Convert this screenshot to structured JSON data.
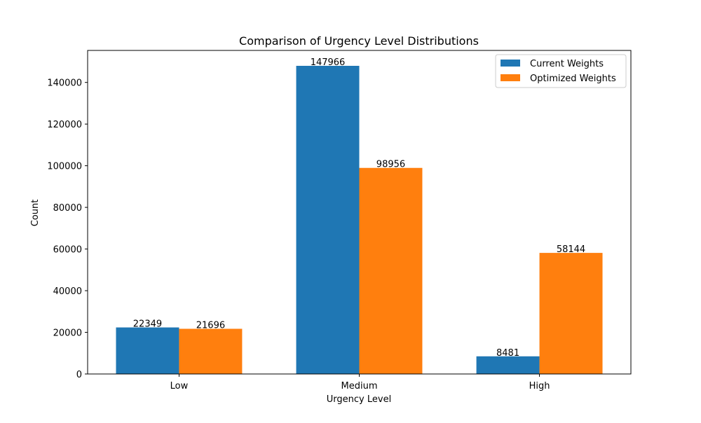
{
  "chart_data": {
    "type": "bar",
    "title": "Comparison of Urgency Level Distributions",
    "xlabel": "Urgency Level",
    "ylabel": "Count",
    "categories": [
      "Low",
      "Medium",
      "High"
    ],
    "series": [
      {
        "name": "Current Weights",
        "values": [
          22349,
          147966,
          8481
        ],
        "color": "#1f77b4"
      },
      {
        "name": "Optimized Weights",
        "values": [
          21696,
          98956,
          58144
        ],
        "color": "#ff7f0e"
      }
    ],
    "ylim": [
      0,
      155364
    ],
    "yticks": [
      0,
      20000,
      40000,
      60000,
      80000,
      100000,
      120000,
      140000
    ],
    "grid": false,
    "legend_position": "top-right",
    "data_labels": true
  }
}
